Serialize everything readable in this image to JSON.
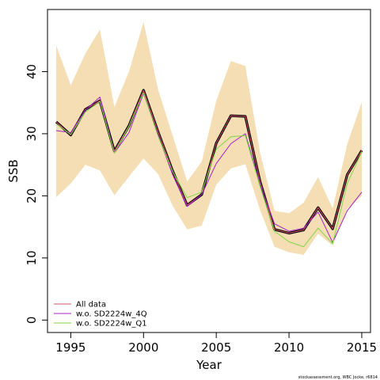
{
  "chart_data": {
    "type": "line",
    "xlabel": "Year",
    "ylabel": "SSB",
    "xlim": [
      1993.4,
      2015.6
    ],
    "ylim": [
      -2,
      50
    ],
    "x_ticks": [
      "1995",
      "2000",
      "2005",
      "2010",
      "2015"
    ],
    "y_ticks": [
      "0",
      "10",
      "20",
      "30",
      "40"
    ],
    "x": [
      1994,
      1995,
      1996,
      1997,
      1998,
      1999,
      2000,
      2001,
      2002,
      2003,
      2004,
      2005,
      2006,
      2007,
      2008,
      2009,
      2010,
      2011,
      2012,
      2013,
      2014,
      2015
    ],
    "confidence_band": {
      "color": "#F5DEB3",
      "upper": [
        44.2,
        37.8,
        42.9,
        46.8,
        34.3,
        40.0,
        48.0,
        37.1,
        29.7,
        22.3,
        25.5,
        35.3,
        41.7,
        40.9,
        27.1,
        17.6,
        17.2,
        18.9,
        23.0,
        18.0,
        28.3,
        35.1
      ],
      "lower": [
        19.8,
        22.0,
        25.0,
        24.1,
        20.1,
        23.1,
        26.0,
        23.5,
        18.4,
        14.6,
        15.2,
        21.8,
        24.4,
        25.1,
        17.8,
        11.8,
        10.9,
        10.5,
        13.9,
        12.0,
        17.9,
        20.0
      ]
    },
    "series": [
      {
        "name": "",
        "color": "#000000",
        "values": [
          31.9,
          29.8,
          33.9,
          35.3,
          27.2,
          31.3,
          37.0,
          30.3,
          24.0,
          18.5,
          20.2,
          28.5,
          32.9,
          32.8,
          22.4,
          14.6,
          14.0,
          14.5,
          18.1,
          14.7,
          23.4,
          27.3
        ]
      },
      {
        "name": "All data",
        "color": "#DF536B",
        "values": [
          31.9,
          29.8,
          33.9,
          35.3,
          27.2,
          31.3,
          37.0,
          30.3,
          24.0,
          18.5,
          20.2,
          28.5,
          32.9,
          32.8,
          22.4,
          14.6,
          14.0,
          14.5,
          18.1,
          14.7,
          23.4,
          27.3
        ]
      },
      {
        "name": "w.o. SD2224w_4Q",
        "color": "#A020C8",
        "values": [
          30.5,
          30.2,
          33.8,
          35.9,
          26.9,
          30.2,
          36.5,
          29.8,
          23.4,
          18.3,
          20.2,
          25.2,
          28.4,
          30.0,
          22.0,
          15.5,
          14.3,
          14.8,
          17.4,
          12.5,
          17.6,
          20.6
        ]
      },
      {
        "name": "w.o. SD2224w_Q1",
        "color": "#7FD64A",
        "values": [
          31.6,
          29.9,
          33.5,
          35.2,
          26.9,
          31.2,
          36.6,
          29.6,
          23.9,
          19.7,
          20.6,
          27.5,
          29.5,
          29.7,
          21.6,
          14.3,
          12.6,
          11.8,
          14.8,
          12.3,
          22.0,
          27.1
        ]
      }
    ],
    "legend": {
      "placement": "bottom-left",
      "entries": [
        "All data",
        "w.o. SD2224w_4Q",
        "w.o. SD2224w_Q1"
      ]
    },
    "grid": false,
    "credit": "stockassessment.org, WBC Jocke, r6814"
  }
}
